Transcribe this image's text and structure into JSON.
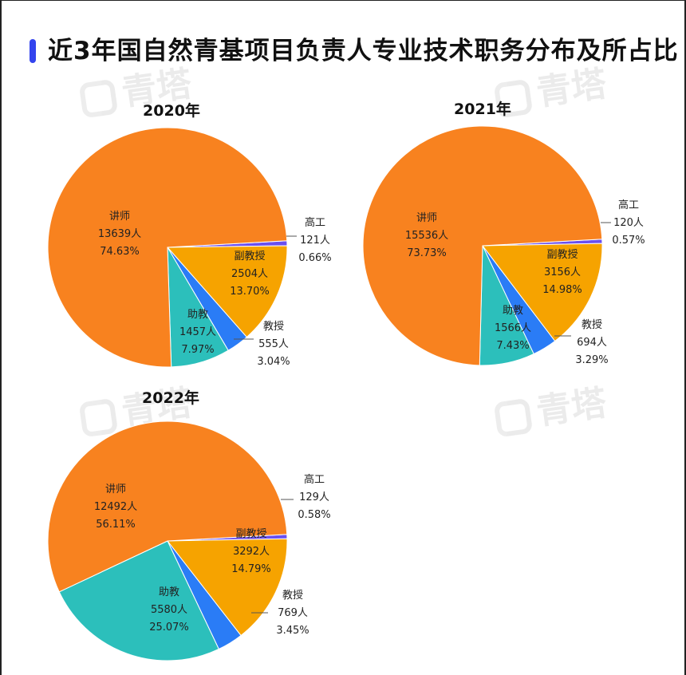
{
  "title": "近3年国自然青基项目负责人专业技术职务分布及所占比",
  "watermark": "青塔",
  "colors": {
    "accent": "#3344ee",
    "讲师": "#f8821f",
    "副教授": "#f6a300",
    "教授": "#2a7cf6",
    "助教": "#2cbfbb",
    "高工": "#6a4ff0"
  },
  "chart_data": [
    {
      "type": "pie",
      "title": "2020年",
      "slices": [
        {
          "label": "高工",
          "count": "121人",
          "pct": "0.66%",
          "value": 121
        },
        {
          "label": "副教授",
          "count": "2504人",
          "pct": "13.70%",
          "value": 2504
        },
        {
          "label": "教授",
          "count": "555人",
          "pct": "3.04%",
          "value": 555
        },
        {
          "label": "助教",
          "count": "1457人",
          "pct": "7.97%",
          "value": 1457
        },
        {
          "label": "讲师",
          "count": "13639人",
          "pct": "74.63%",
          "value": 13639
        }
      ]
    },
    {
      "type": "pie",
      "title": "2021年",
      "slices": [
        {
          "label": "高工",
          "count": "120人",
          "pct": "0.57%",
          "value": 120
        },
        {
          "label": "副教授",
          "count": "3156人",
          "pct": "14.98%",
          "value": 3156
        },
        {
          "label": "教授",
          "count": "694人",
          "pct": "3.29%",
          "value": 694
        },
        {
          "label": "助教",
          "count": "1566人",
          "pct": "7.43%",
          "value": 1566
        },
        {
          "label": "讲师",
          "count": "15536人",
          "pct": "73.73%",
          "value": 15536
        }
      ]
    },
    {
      "type": "pie",
      "title": "2022年",
      "slices": [
        {
          "label": "高工",
          "count": "129人",
          "pct": "0.58%",
          "value": 129
        },
        {
          "label": "副教授",
          "count": "3292人",
          "pct": "14.79%",
          "value": 3292
        },
        {
          "label": "教授",
          "count": "769人",
          "pct": "3.45%",
          "value": 769
        },
        {
          "label": "助教",
          "count": "5580人",
          "pct": "25.07%",
          "value": 5580
        },
        {
          "label": "讲师",
          "count": "12492人",
          "pct": "56.11%",
          "value": 12492
        }
      ]
    }
  ]
}
